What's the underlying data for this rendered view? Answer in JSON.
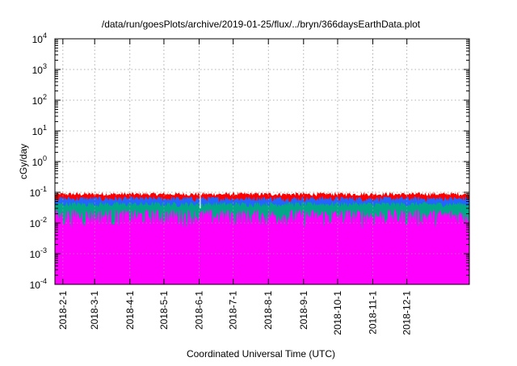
{
  "chart_data": {
    "type": "area",
    "title": "/data/run/goesPlots/archive/2019-01-25/flux/../bryn/366daysEarthData.plot",
    "xlabel": "Coordinated Universal Time (UTC)",
    "ylabel": "cGy/day",
    "y_scale": "log",
    "ylim": [
      0.0001,
      10000
    ],
    "y_ticks": [
      {
        "value": 0.0001,
        "base": "10",
        "exp": "-4"
      },
      {
        "value": 0.001,
        "base": "10",
        "exp": "-3"
      },
      {
        "value": 0.01,
        "base": "10",
        "exp": "-2"
      },
      {
        "value": 0.1,
        "base": "10",
        "exp": "-1"
      },
      {
        "value": 1,
        "base": "10",
        "exp": "0"
      },
      {
        "value": 10,
        "base": "10",
        "exp": "1"
      },
      {
        "value": 100,
        "base": "10",
        "exp": "2"
      },
      {
        "value": 1000,
        "base": "10",
        "exp": "3"
      },
      {
        "value": 10000,
        "base": "10",
        "exp": "4"
      }
    ],
    "xlim": [
      "2018-01-25",
      "2019-01-25"
    ],
    "x_ticks": [
      {
        "date": "2018-02-01",
        "label": "2018-2-1"
      },
      {
        "date": "2018-03-01",
        "label": "2018-3-1"
      },
      {
        "date": "2018-04-01",
        "label": "2018-4-1"
      },
      {
        "date": "2018-05-01",
        "label": "2018-5-1"
      },
      {
        "date": "2018-06-01",
        "label": "2018-6-1"
      },
      {
        "date": "2018-07-01",
        "label": "2018-7-1"
      },
      {
        "date": "2018-08-01",
        "label": "2018-8-1"
      },
      {
        "date": "2018-09-01",
        "label": "2018-9-1"
      },
      {
        "date": "2018-10-01",
        "label": "2018-10-1"
      },
      {
        "date": "2018-11-01",
        "label": "2018-11-1"
      },
      {
        "date": "2018-12-01",
        "label": "2018-12-1"
      }
    ],
    "grid": true,
    "legend": "none",
    "series": [
      {
        "color": "#ff0000",
        "typical": 0.085,
        "low": 0.07,
        "high": 0.1
      },
      {
        "color": "#2266ff",
        "typical": 0.065,
        "low": 0.045,
        "high": 0.075
      },
      {
        "color": "#00aa88",
        "typical": 0.04,
        "low": 0.03,
        "high": 0.05
      },
      {
        "color": "#ff00ff",
        "typical": 0.015,
        "low": 0.003,
        "high": 0.03,
        "dropouts_to": 0.0001
      }
    ]
  }
}
